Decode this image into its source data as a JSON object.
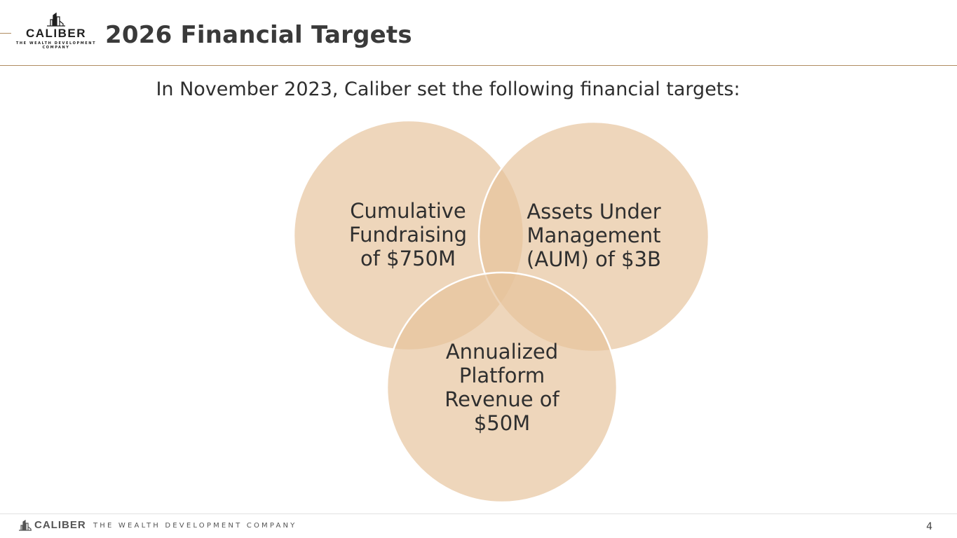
{
  "header": {
    "logo": {
      "wordmark": "CALIBER",
      "tagline_line1": "THE WEALTH DEVELOPMENT",
      "tagline_line2": "COMPANY",
      "icon": "buildings-logo-icon"
    },
    "title": "2026 Financial Targets"
  },
  "intro": "In November 2023, Caliber set the following financial targets:",
  "venn": {
    "circle_color": "#e6c39b",
    "overlap_color": "#d9a86c",
    "circles": [
      {
        "lines": [
          "Cumulative",
          "Fundraising",
          "of $750M"
        ]
      },
      {
        "lines": [
          "Assets Under",
          "Management",
          "(AUM) of $3B"
        ]
      },
      {
        "lines": [
          "Annualized",
          "Platform",
          "Revenue of",
          "$50M"
        ]
      }
    ]
  },
  "footer": {
    "brand": "CALIBER",
    "tagline": "THE WEALTH DEVELOPMENT  COMPANY",
    "icon": "buildings-logo-icon",
    "page_number": "4"
  },
  "colors": {
    "accent": "#b08d62",
    "text": "#2f2f2f"
  }
}
